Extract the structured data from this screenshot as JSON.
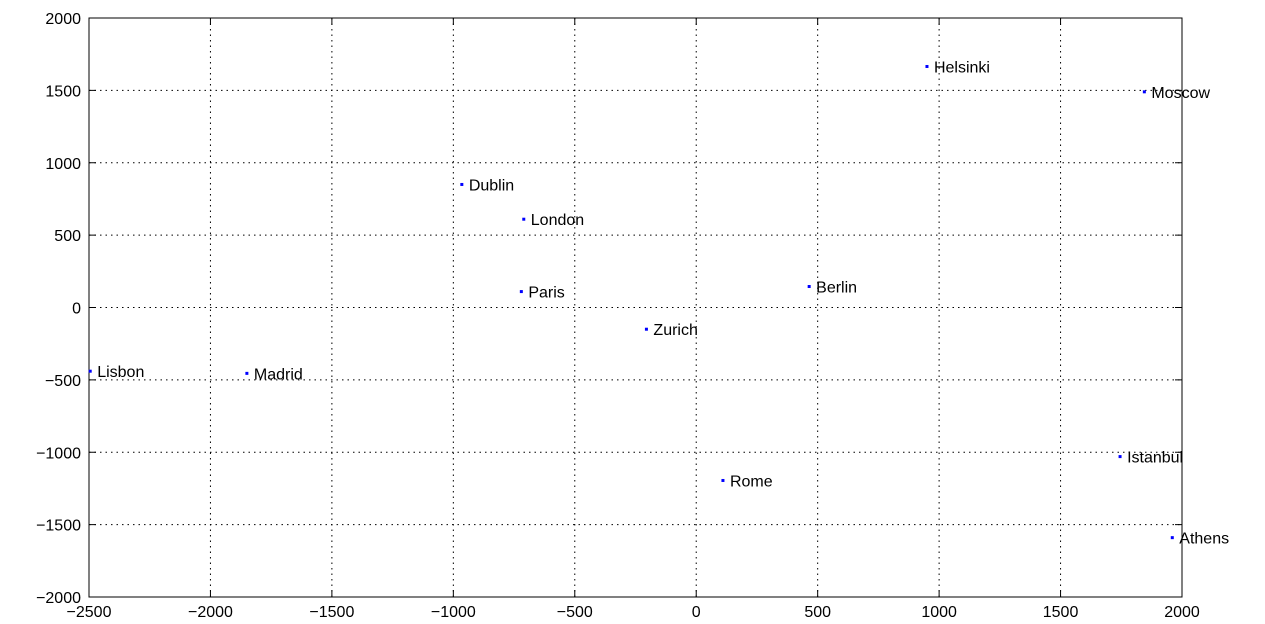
{
  "chart_data": {
    "type": "scatter",
    "title": "",
    "xlabel": "",
    "ylabel": "",
    "xlim": [
      -2500,
      2000
    ],
    "ylim": [
      -2000,
      2000
    ],
    "x_ticks": [
      -2500,
      -2000,
      -1500,
      -1000,
      -500,
      0,
      500,
      1000,
      1500,
      2000
    ],
    "y_ticks": [
      2000,
      1500,
      1000,
      500,
      0,
      -500,
      -1000,
      -1500,
      -2000
    ],
    "x_tick_labels": [
      "−2500",
      "−2000",
      "−1500",
      "−1000",
      "−500",
      "0",
      "500",
      "1000",
      "1500",
      "2000"
    ],
    "y_tick_labels": [
      "2000",
      "1500",
      "1000",
      "500",
      "0",
      "−500",
      "−1000",
      "−1500",
      "−2000"
    ],
    "grid": true,
    "marker_color": "#0000ff",
    "points": [
      {
        "label": "Helsinki",
        "x": 950,
        "y": 1665
      },
      {
        "label": "Moscow",
        "x": 1845,
        "y": 1490
      },
      {
        "label": "Dublin",
        "x": -965,
        "y": 850
      },
      {
        "label": "London",
        "x": -710,
        "y": 610
      },
      {
        "label": "Paris",
        "x": -720,
        "y": 110
      },
      {
        "label": "Berlin",
        "x": 465,
        "y": 145
      },
      {
        "label": "Zurich",
        "x": -205,
        "y": -150
      },
      {
        "label": "Lisbon",
        "x": -2495,
        "y": -440
      },
      {
        "label": "Madrid",
        "x": -1850,
        "y": -455
      },
      {
        "label": "Istanbul",
        "x": 1745,
        "y": -1030
      },
      {
        "label": "Rome",
        "x": 110,
        "y": -1195
      },
      {
        "label": "Athens",
        "x": 1960,
        "y": -1590
      }
    ]
  }
}
